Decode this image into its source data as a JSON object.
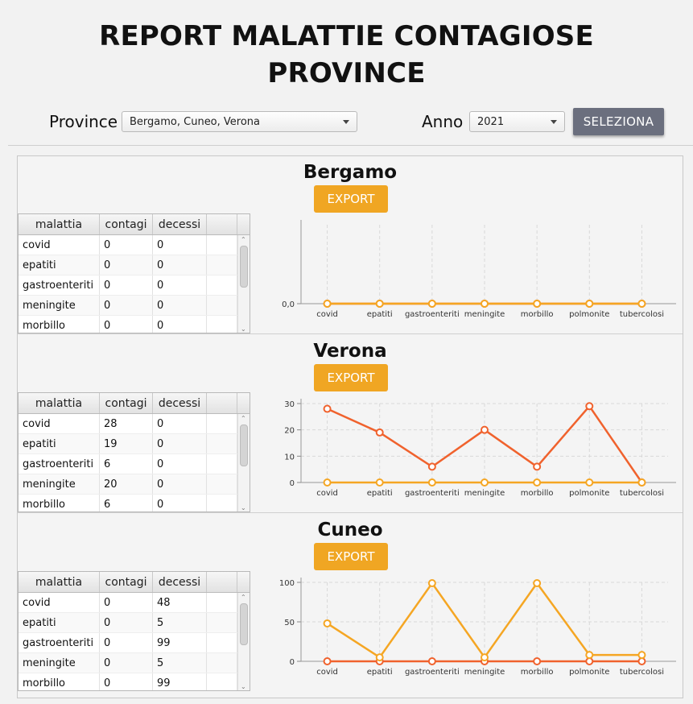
{
  "header": {
    "title_line1": "REPORT MALATTIE CONTAGIOSE",
    "title_line2": "PROVINCE",
    "province_label": "Province",
    "province_value": "Bergamo, Cuneo, Verona",
    "anno_label": "Anno",
    "anno_value": "2021",
    "select_label": "SELEZIONA"
  },
  "table_headers": [
    "malattia",
    "contagi",
    "decessi"
  ],
  "export_label": "EXPORT",
  "categories": [
    "covid",
    "epatiti",
    "gastroenteriti",
    "meningite",
    "morbillo",
    "polmonite",
    "tubercolosi"
  ],
  "colors": {
    "contagi": "#f0622d",
    "decessi": "#f5a623",
    "export": "#f0a623",
    "select": "#6b6f7e"
  },
  "panels": [
    {
      "name": "Bergamo",
      "rows": [
        [
          "covid",
          "0",
          "0"
        ],
        [
          "epatiti",
          "0",
          "0"
        ],
        [
          "gastroenteriti",
          "0",
          "0"
        ],
        [
          "meningite",
          "0",
          "0"
        ],
        [
          "morbillo",
          "0",
          "0"
        ]
      ],
      "chart_data": {
        "type": "line",
        "categories": [
          "covid",
          "epatiti",
          "gastroenteriti",
          "meningite",
          "morbillo",
          "polmonite",
          "tubercolosi"
        ],
        "yticks": [
          "0,0"
        ],
        "ylim": [
          0,
          1
        ],
        "series": [
          {
            "key": "contagi",
            "values": [
              0,
              0,
              0,
              0,
              0,
              0,
              0
            ]
          },
          {
            "key": "decessi",
            "values": [
              0,
              0,
              0,
              0,
              0,
              0,
              0
            ]
          }
        ]
      }
    },
    {
      "name": "Verona",
      "rows": [
        [
          "covid",
          "28",
          "0"
        ],
        [
          "epatiti",
          "19",
          "0"
        ],
        [
          "gastroenteriti",
          "6",
          "0"
        ],
        [
          "meningite",
          "20",
          "0"
        ],
        [
          "morbillo",
          "6",
          "0"
        ]
      ],
      "chart_data": {
        "type": "line",
        "categories": [
          "covid",
          "epatiti",
          "gastroenteriti",
          "meningite",
          "morbillo",
          "polmonite",
          "tubercolosi"
        ],
        "yticks": [
          "0",
          "10",
          "20",
          "30"
        ],
        "ylim": [
          0,
          30
        ],
        "series": [
          {
            "key": "contagi",
            "values": [
              28,
              19,
              6,
              20,
              6,
              29,
              0
            ]
          },
          {
            "key": "decessi",
            "values": [
              0,
              0,
              0,
              0,
              0,
              0,
              0
            ]
          }
        ]
      }
    },
    {
      "name": "Cuneo",
      "rows": [
        [
          "covid",
          "0",
          "48"
        ],
        [
          "epatiti",
          "0",
          "5"
        ],
        [
          "gastroenteriti",
          "0",
          "99"
        ],
        [
          "meningite",
          "0",
          "5"
        ],
        [
          "morbillo",
          "0",
          "99"
        ]
      ],
      "chart_data": {
        "type": "line",
        "categories": [
          "covid",
          "epatiti",
          "gastroenteriti",
          "meningite",
          "morbillo",
          "polmonite",
          "tubercolosi"
        ],
        "yticks": [
          "0",
          "50",
          "100"
        ],
        "ylim": [
          0,
          100
        ],
        "series": [
          {
            "key": "contagi",
            "values": [
              0,
              0,
              0,
              0,
              0,
              0,
              0
            ]
          },
          {
            "key": "decessi",
            "values": [
              48,
              5,
              99,
              5,
              99,
              8,
              8
            ]
          }
        ]
      }
    }
  ]
}
